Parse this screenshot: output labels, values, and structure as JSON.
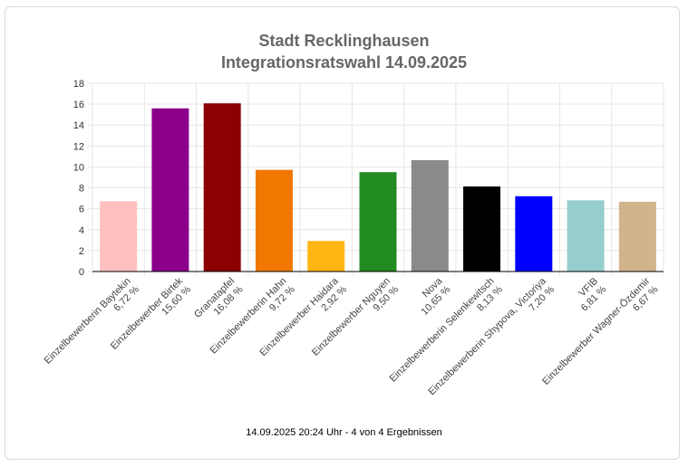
{
  "header": {
    "title_line1": "Stadt Recklinghausen",
    "title_line2": "Integrationsratswahl 14.09.2025"
  },
  "footer": {
    "status": "14.09.2025 20:24 Uhr - 4 von 4 Ergebnissen"
  },
  "chart_data": {
    "type": "bar",
    "title": "Stadt Recklinghausen Integrationsratswahl 14.09.2025",
    "ylim": [
      0,
      18
    ],
    "yticks": [
      0,
      2,
      4,
      6,
      8,
      10,
      12,
      14,
      16,
      18
    ],
    "grid": true,
    "categories": [
      "Einzelbewerberin Baytekin",
      "Einzelbewerber Birtek",
      "Granatapfel",
      "Einzelbewerberin Hahn",
      "Einzelbewerber Haidara",
      "Einzelbewerber Nguyen",
      "Nova",
      "Einzelbewerberin Selenkewitsch",
      "Einzelbewerberin Shypova, Victoriya",
      "VFIB",
      "Einzelbewerber Wagner-Özdemir"
    ],
    "values": [
      6.72,
      15.6,
      16.08,
      9.72,
      2.92,
      9.5,
      10.65,
      8.13,
      7.2,
      6.81,
      6.67
    ],
    "value_labels": [
      "6,72 %",
      "15,60 %",
      "16,08 %",
      "9,72 %",
      "2,92 %",
      "9,50 %",
      "10,65 %",
      "8,13 %",
      "7,20 %",
      "6,81 %",
      "6,67 %"
    ],
    "colors": [
      "#ffc0c0",
      "#8b008b",
      "#8b0000",
      "#f07800",
      "#ffb612",
      "#228b22",
      "#8a8a8a",
      "#000000",
      "#0000ff",
      "#96cdcd",
      "#d2b48c"
    ]
  }
}
